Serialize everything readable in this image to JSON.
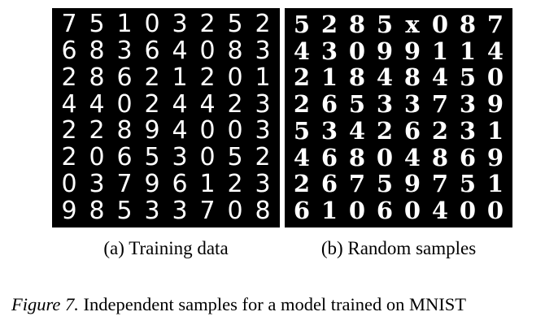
{
  "subfigures": [
    {
      "caption": "(a) Training data",
      "digits": [
        [
          "7",
          "5",
          "1",
          "0",
          "3",
          "2",
          "5",
          "2"
        ],
        [
          "6",
          "8",
          "3",
          "6",
          "4",
          "0",
          "8",
          "3"
        ],
        [
          "2",
          "8",
          "6",
          "2",
          "1",
          "2",
          "0",
          "1"
        ],
        [
          "4",
          "4",
          "0",
          "2",
          "4",
          "4",
          "2",
          "3"
        ],
        [
          "2",
          "2",
          "8",
          "9",
          "4",
          "0",
          "0",
          "3"
        ],
        [
          "2",
          "0",
          "6",
          "5",
          "3",
          "0",
          "5",
          "2"
        ],
        [
          "0",
          "3",
          "7",
          "9",
          "6",
          "1",
          "2",
          "3"
        ],
        [
          "9",
          "8",
          "5",
          "3",
          "3",
          "7",
          "0",
          "8"
        ]
      ]
    },
    {
      "caption": "(b) Random samples",
      "digits": [
        [
          "5",
          "2",
          "8",
          "5",
          "x",
          "0",
          "8",
          "7"
        ],
        [
          "4",
          "3",
          "0",
          "9",
          "9",
          "1",
          "1",
          "4"
        ],
        [
          "2",
          "1",
          "8",
          "4",
          "8",
          "4",
          "5",
          "0"
        ],
        [
          "2",
          "6",
          "5",
          "3",
          "3",
          "7",
          "3",
          "9"
        ],
        [
          "5",
          "3",
          "4",
          "2",
          "6",
          "2",
          "3",
          "1"
        ],
        [
          "4",
          "6",
          "8",
          "0",
          "4",
          "8",
          "6",
          "9"
        ],
        [
          "2",
          "6",
          "7",
          "5",
          "9",
          "7",
          "5",
          "1"
        ],
        [
          "6",
          "1",
          "0",
          "6",
          "0",
          "4",
          "0",
          "0"
        ]
      ]
    }
  ],
  "figure_caption": {
    "label": "Figure 7.",
    "text": " Independent samples for a model trained on MNIST"
  }
}
